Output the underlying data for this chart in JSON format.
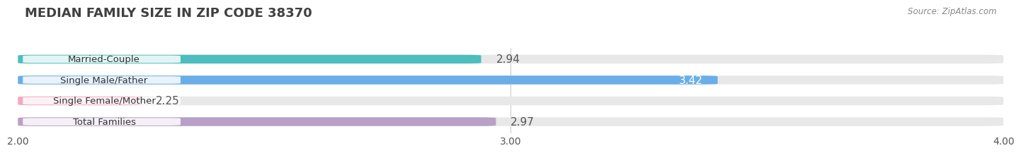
{
  "title": "MEDIAN FAMILY SIZE IN ZIP CODE 38370",
  "source": "Source: ZipAtlas.com",
  "categories": [
    "Married-Couple",
    "Single Male/Father",
    "Single Female/Mother",
    "Total Families"
  ],
  "values": [
    2.94,
    3.42,
    2.25,
    2.97
  ],
  "bar_colors": [
    "#4dbdbd",
    "#6aaee8",
    "#f4a8c0",
    "#b8a0c8"
  ],
  "bar_bg_color": "#e8e8e8",
  "xlim": [
    2.0,
    4.0
  ],
  "xticks": [
    2.0,
    3.0,
    4.0
  ],
  "label_inside": [
    false,
    true,
    false,
    false
  ],
  "background_color": "#ffffff",
  "title_fontsize": 13,
  "tick_fontsize": 10,
  "bar_label_fontsize": 11,
  "category_fontsize": 9.5,
  "bar_height": 0.42,
  "bar_spacing": 1.0
}
